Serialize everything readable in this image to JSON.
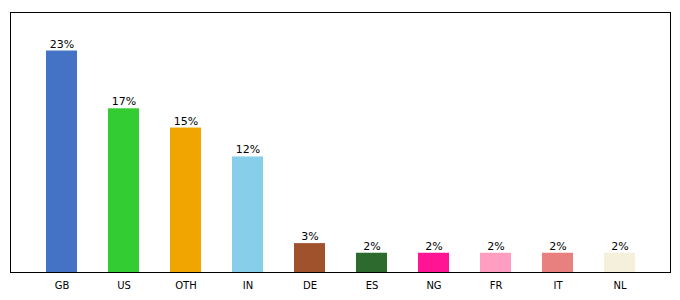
{
  "chart_data": {
    "type": "bar",
    "categories": [
      "GB",
      "US",
      "OTH",
      "IN",
      "DE",
      "ES",
      "NG",
      "FR",
      "IT",
      "NL"
    ],
    "values": [
      23,
      17,
      15,
      12,
      3,
      2,
      2,
      2,
      2,
      2
    ],
    "value_labels": [
      "23%",
      "17%",
      "15%",
      "12%",
      "3%",
      "2%",
      "2%",
      "2%",
      "2%",
      "2%"
    ],
    "colors": [
      "#4472c4",
      "#33cc33",
      "#f0a500",
      "#87ceeb",
      "#a0522d",
      "#2d6a2d",
      "#ff1493",
      "#ff9ec0",
      "#e88080",
      "#f5f0dc"
    ],
    "ylim": [
      0,
      27
    ],
    "data_labels": true,
    "tick_labels": "x",
    "grid": false
  }
}
